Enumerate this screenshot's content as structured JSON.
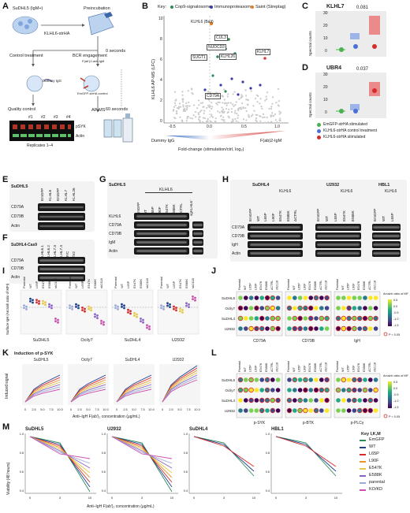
{
  "panels": {
    "A": {
      "label": "A",
      "cells": "SuDHL5 (IgM+)",
      "preinc": "Preincubation",
      "construct": "KLHL6-strHA",
      "control": "Control treatment",
      "bcr": "BCR engagement",
      "fab": "F(ab')2-anti-IgM",
      "zero": "0 seconds",
      "sixty": "60 seconds",
      "dummy": "Dummy IgG",
      "emgfp": "EmGFP-strHA control",
      "qc": "Quality control",
      "apms": "AP-MS",
      "lanes": [
        "#1",
        "#2",
        "#3",
        "#4"
      ],
      "psyk": "pSYK",
      "actin": "Actin",
      "replicates": "Replicates 1–4"
    },
    "B": {
      "label": "B",
      "key": "Key:",
      "legend": [
        "Cop9-signalosome",
        "Immunoproteasome",
        "Saint (Streptag)"
      ],
      "legend_colors": [
        "#2e8b57",
        "#3a3aa8",
        "#e67e22"
      ],
      "ylabel": "KLHL6 AP-MS (LFC)",
      "xlabel": "Fold-change (stimulation/ctrl, log₂)",
      "left_grad": "Dummy IgG",
      "right_grad": "F(ab)2-IgM",
      "xticks": [
        "-0.5",
        "0.0",
        "0.5",
        "1.0"
      ],
      "yticks": [
        "0",
        "2",
        "4",
        "6",
        "8",
        "10"
      ],
      "genes": [
        "KLHL6 (Bait)",
        "CUL3",
        "NUDCD3",
        "SUGT1",
        "KLHL26",
        "KLHL7",
        "CD79A"
      ]
    },
    "C": {
      "label": "C",
      "title": "KLHL7",
      "p": "0.081",
      "ylabel": "Spectral counts",
      "yticks": [
        "0",
        "10",
        "20",
        "30"
      ]
    },
    "D": {
      "label": "D",
      "title": "UBR4",
      "p": "0.037",
      "ylabel": "Spectral counts",
      "yticks": [
        "0",
        "10",
        "20",
        "30"
      ]
    },
    "CD_legend": [
      "EmGFP-strHA stimulated",
      "KLHL6-strHA control treatment",
      "KLHL6-strHA stimulated"
    ],
    "CD_colors": [
      "#4caf50",
      "#4a6fd6",
      "#d62b2b"
    ],
    "E": {
      "label": "E",
      "cell": "SuDHL5",
      "lanes": [
        "EmGFP",
        "KLHL6",
        "EmGFP",
        "KLHL7",
        "KLHL26"
      ],
      "rows": [
        "CD79A",
        "CD79B",
        "Actin"
      ]
    },
    "F": {
      "label": "F",
      "cell": "SuDHL4-Cas9",
      "lanes": [
        "KLHL6.1",
        "KLHL6.2",
        "KLHL7.3",
        "KLHL7.4",
        "MYC",
        "Chr2"
      ],
      "rows": [
        "CD79A",
        "CD79B",
        "Actin"
      ]
    },
    "G": {
      "label": "G",
      "cell": "SuDHL5",
      "group": "KLHL6",
      "lanes": [
        "EmGFP",
        "WT",
        "L65P",
        "L90F",
        "E547K",
        "E588K",
        "ΔCTRL",
        "sgKLHL6⁻"
      ],
      "rows": [
        "KLHL6",
        "CD79A",
        "CD79B",
        "IgM",
        "Actin"
      ]
    },
    "H": {
      "label": "H",
      "cells": [
        "SuDHL4",
        "U2932",
        "HBL1"
      ],
      "group": "KLHL6",
      "lanes1": [
        "EmGFP",
        "WT",
        "L65P",
        "L90F",
        "E547K",
        "E588K",
        "ΔCTRL"
      ],
      "lanes2": [
        "EmGFP",
        "WT",
        "L65P",
        "E547K",
        "E588K"
      ],
      "lanes3": [
        "EmGFP",
        "WT",
        "L65P"
      ],
      "rows": [
        "CD79A",
        "CD79B",
        "IgH",
        "Actin"
      ]
    },
    "I": {
      "label": "I",
      "ylabel": "Surface IgH (Arcsinh ratio of MFI)",
      "cells": [
        "SuDHL5",
        "Ocily7",
        "SuDHL4",
        "U2932"
      ],
      "cols": [
        "Parental",
        "WT",
        "L65P",
        "E547K",
        "E588K",
        "sh2118"
      ]
    },
    "J": {
      "label": "J",
      "cols": [
        "Parental",
        "WT",
        "L65P",
        "L90F",
        "E547K",
        "E588K",
        "ΔCTRL",
        "sh2118"
      ],
      "rows": [
        "SuDHL5",
        "Ocily7",
        "SuDHL4",
        "U2932"
      ],
      "groups": [
        "CD79A",
        "CD79B",
        "IgH"
      ],
      "cbar_title": "Arcsinh ratio of MFI",
      "cbar_ticks": [
        "0.5",
        "0.0",
        "-0.5",
        "-1.0",
        "-1.5"
      ],
      "p_note": "P < 0.05"
    },
    "K": {
      "label": "K",
      "title": "Induction of p-SYK",
      "cells": [
        "SuDHL5",
        "Ocily7",
        "SuDHL4",
        "U2932"
      ],
      "ylabel": "Induced signal",
      "xlabel": "Anti–IgH F(ab')₂ concentration (µg/mL)",
      "xticks": [
        "0",
        "2.5",
        "5.0",
        "7.5",
        "10.0"
      ]
    },
    "L": {
      "label": "L",
      "cols": [
        "Parental",
        "WT",
        "L65P",
        "L90F",
        "E547K",
        "E588K",
        "ΔCTRL",
        "sh2118"
      ],
      "rows": [
        "SuDHL5",
        "Ocily7",
        "SuDHL4",
        "U2932"
      ],
      "groups": [
        "p-SYK",
        "p-BTK",
        "p-PLCγ"
      ],
      "cbar_title": "Arcsinh ratio of MFI",
      "cbar_ticks": [
        "0.5",
        "0.0",
        "-0.5",
        "-1.0",
        "-1.5"
      ],
      "p_note": "P < 0.05"
    },
    "M": {
      "label": "M",
      "cells": [
        "SuDHL5",
        "U2932",
        "SuDHL4",
        "HBL1"
      ],
      "ylabel": "Viability (48 hours)",
      "xlabel": "Anti–IgH F(ab')₂ concentration (µg/mL)",
      "xticks": [
        "0",
        "3",
        "10"
      ],
      "yticks": [
        "0.4",
        "0.6",
        "0.8",
        "1.0"
      ],
      "key_title": "Key I,K,M",
      "key": [
        "EmGFP",
        "WT",
        "L65P",
        "L90F",
        "E547K",
        "E588K",
        "parental",
        "KO/KD"
      ],
      "key_colors": [
        "#2e8b57",
        "#1f3f8f",
        "#d62b2b",
        "#e8962a",
        "#e8c84a",
        "#8a63c7",
        "#9aa9d6",
        "#cc4fb0"
      ]
    }
  }
}
